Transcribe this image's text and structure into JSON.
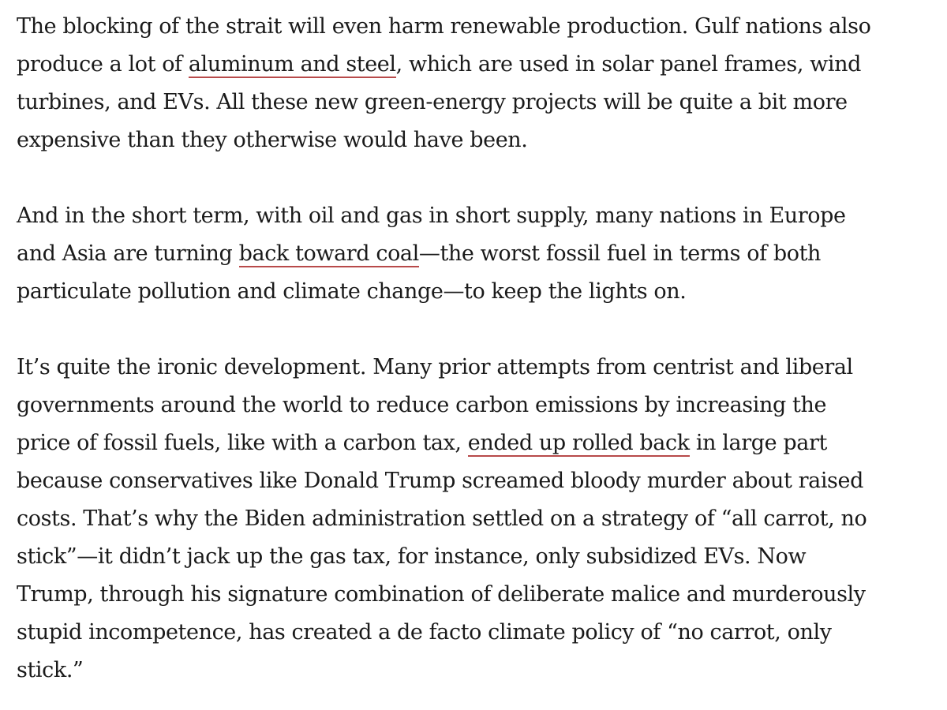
{
  "article": {
    "paragraphs": [
      {
        "lines": [
          [
            "The blocking of the strait will even harm renewable production. Gulf nations also"
          ],
          [
            "produce a lot of ",
            {
              "link": "aluminum and steel"
            },
            ", which are used in solar panel frames, wind"
          ],
          [
            "turbines, and EVs. All these new green-energy projects will be quite a bit more"
          ],
          [
            "expensive than they otherwise would have been."
          ]
        ]
      },
      {
        "lines": [
          [
            "And in the short term, with oil and gas in short supply, many nations in Europe"
          ],
          [
            "and Asia are turning ",
            {
              "link": "back toward coal"
            },
            "—the worst fossil fuel in terms of both"
          ],
          [
            "particulate pollution and climate change—to keep the lights on."
          ]
        ]
      },
      {
        "lines": [
          [
            "It’s quite the ironic development. Many prior attempts from centrist and liberal"
          ],
          [
            "governments around the world to reduce carbon emissions by increasing the"
          ],
          [
            "price of fossil fuels, like with a carbon tax, ",
            {
              "link": "ended up rolled back"
            },
            " in large part"
          ],
          [
            "because conservatives like Donald Trump screamed bloody murder about raised"
          ],
          [
            "costs. That’s why the Biden administration settled on a strategy of “all carrot, no"
          ],
          [
            "stick”—it didn’t jack up the gas tax, for instance, only subsidized EVs. Now"
          ],
          [
            "Trump, through his signature combination of deliberate malice and murderously"
          ],
          [
            "stupid incompetence, has created a de facto climate policy of “no carrot, only"
          ],
          [
            "stick.”"
          ]
        ]
      }
    ],
    "link_underline_color": "#b84a4a",
    "text_color": "#1a1a1a"
  }
}
